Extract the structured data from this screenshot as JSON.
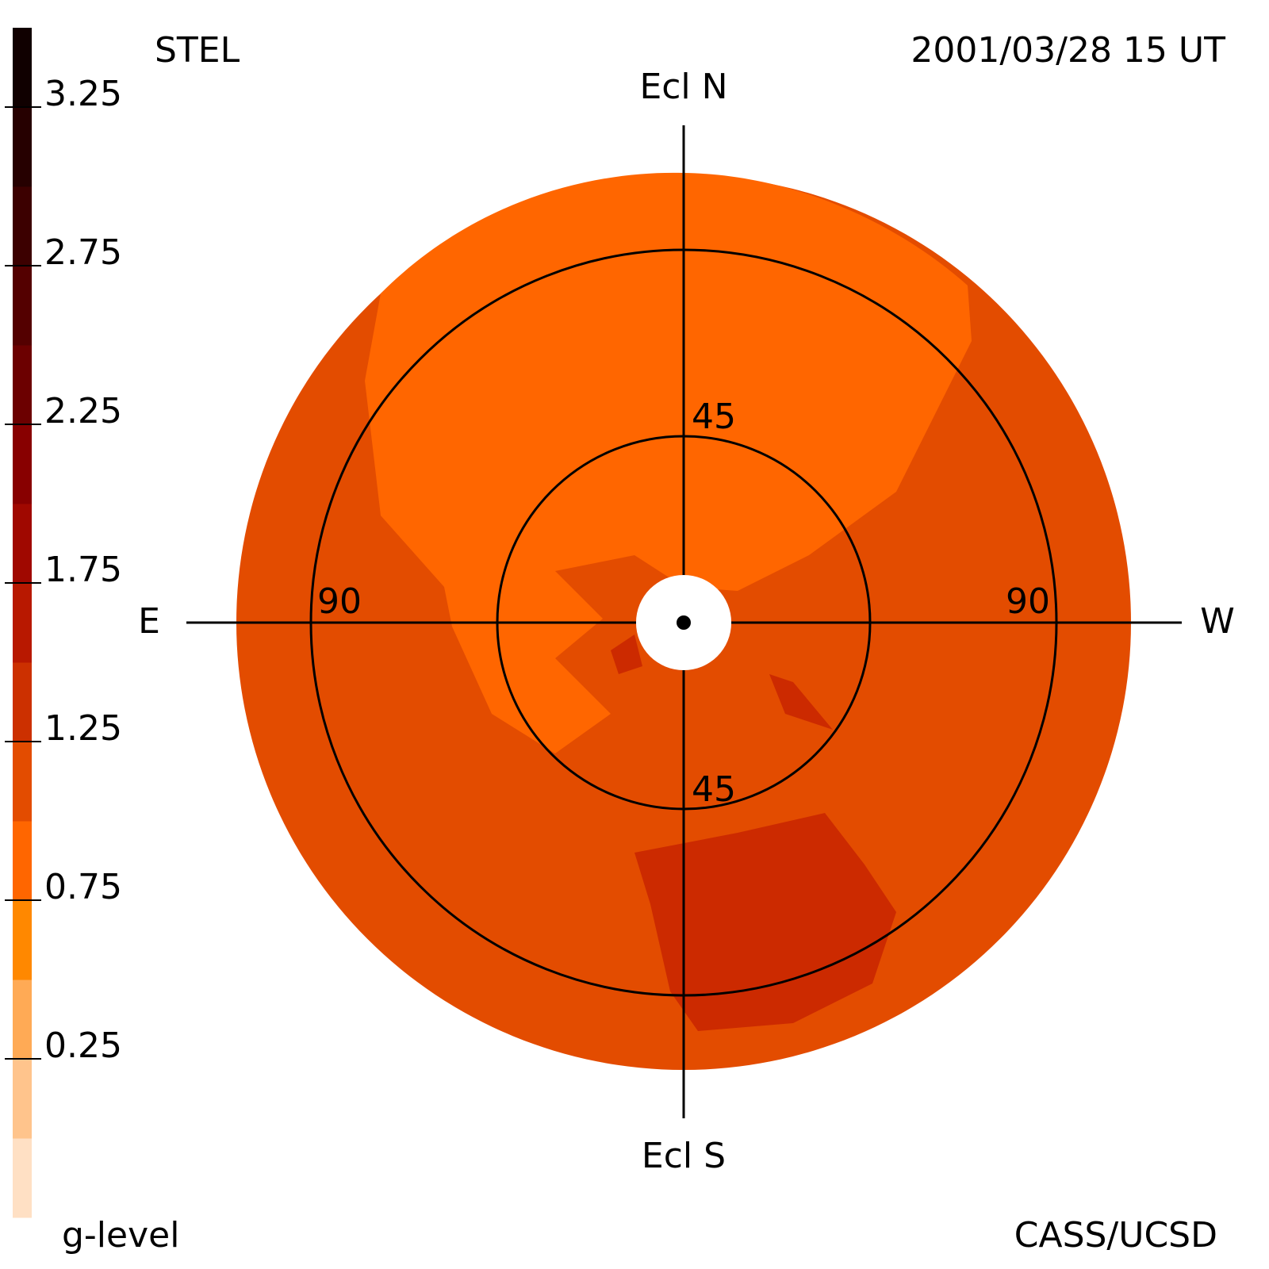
{
  "title": "STEL",
  "date": "2001/03/28 15 UT",
  "credit": "CASS/UCSD",
  "colorbar": {
    "label": "g-level",
    "lim": [
      -0.25,
      3.5
    ],
    "ticks": [
      0.25,
      0.75,
      1.25,
      1.75,
      2.25,
      2.75,
      3.25
    ],
    "colors": [
      "#ffe0c4",
      "#ffc48c",
      "#ffaa55",
      "#ff8800",
      "#ff6600",
      "#e34c00",
      "#cc3000",
      "#b81800",
      "#a00800",
      "#880000",
      "#6c0000",
      "#540000",
      "#3c0000",
      "#260000",
      "#100000"
    ]
  },
  "map": {
    "north": "Ecl N",
    "south": "Ecl S",
    "east": "E",
    "west": "W",
    "rings": [
      45,
      90
    ],
    "rlim": [
      0,
      108
    ],
    "hole": 11.5
  }
}
